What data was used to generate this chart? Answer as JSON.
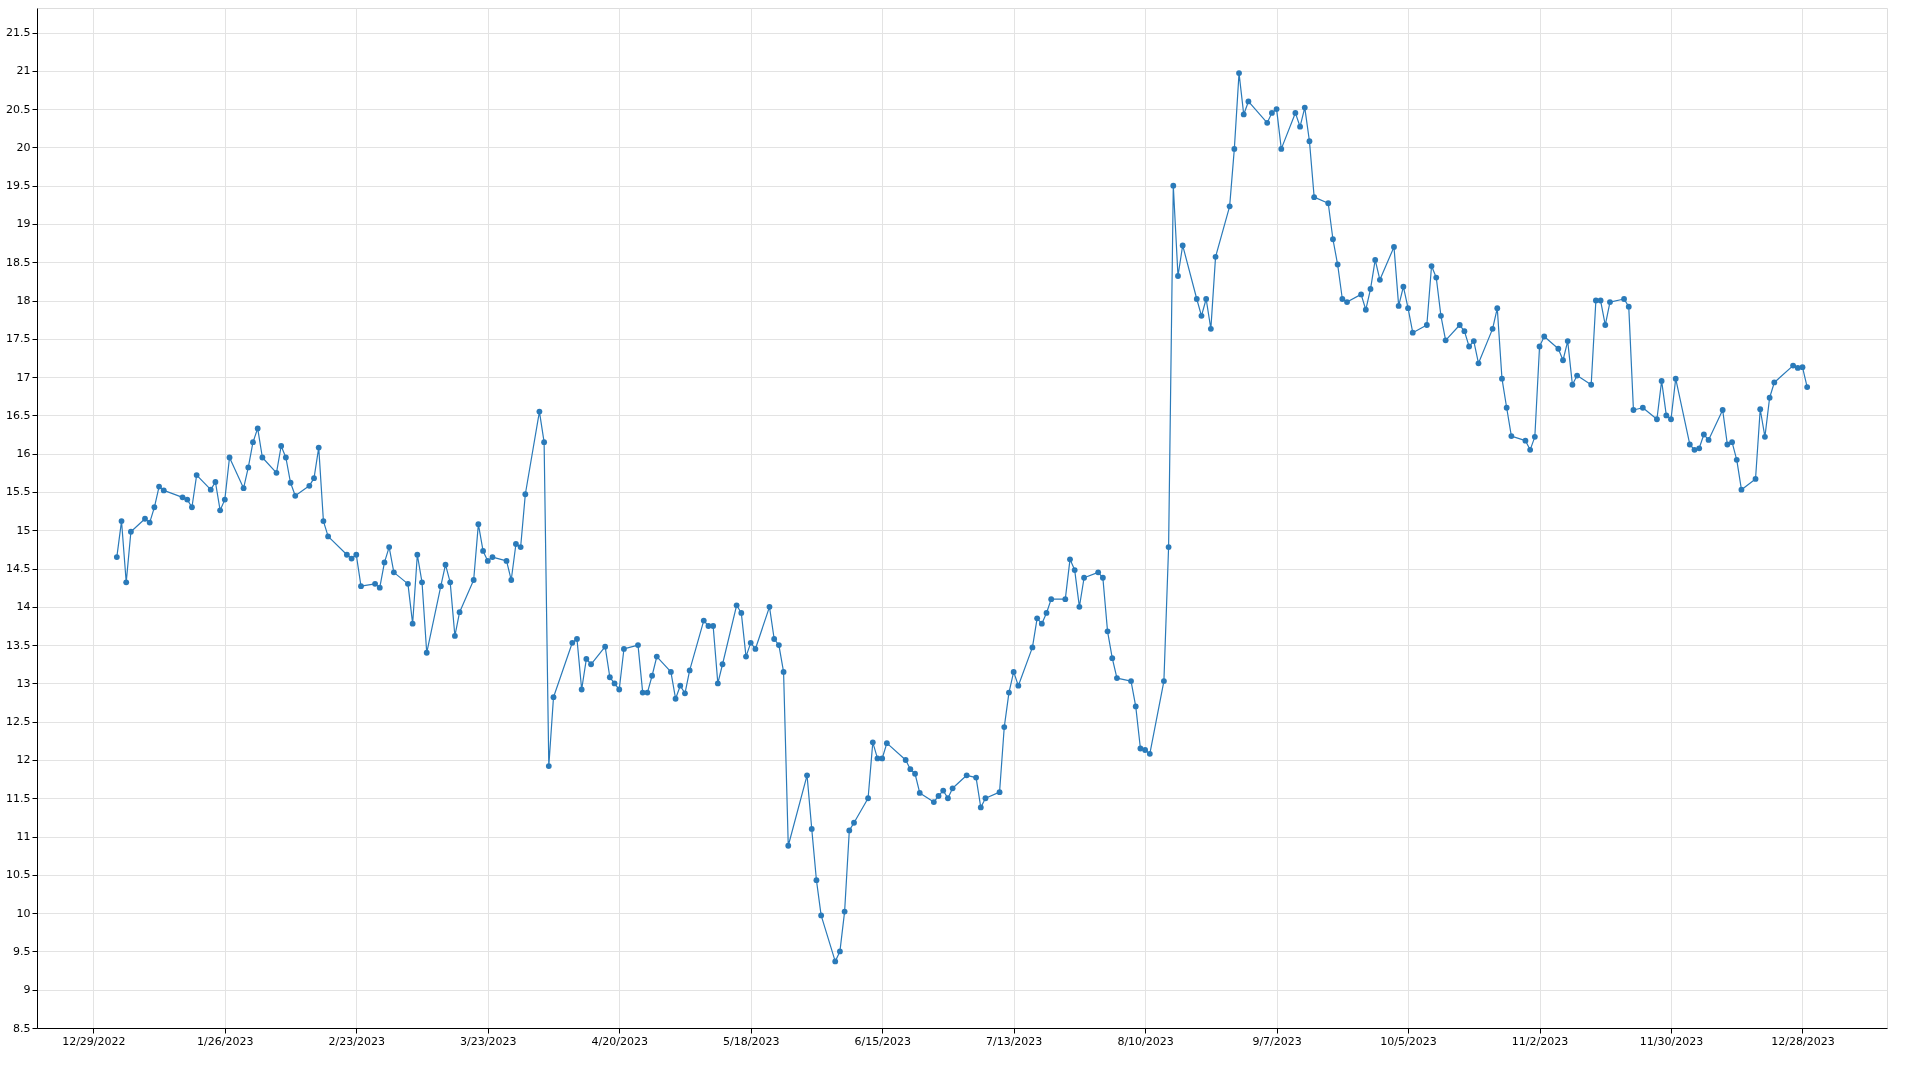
{
  "chart_data": {
    "type": "line",
    "x": [
      "2023-01-03",
      "2023-01-04",
      "2023-01-05",
      "2023-01-06",
      "2023-01-09",
      "2023-01-10",
      "2023-01-11",
      "2023-01-12",
      "2023-01-13",
      "2023-01-17",
      "2023-01-18",
      "2023-01-19",
      "2023-01-20",
      "2023-01-23",
      "2023-01-24",
      "2023-01-25",
      "2023-01-26",
      "2023-01-27",
      "2023-01-30",
      "2023-01-31",
      "2023-02-01",
      "2023-02-02",
      "2023-02-03",
      "2023-02-06",
      "2023-02-07",
      "2023-02-08",
      "2023-02-09",
      "2023-02-10",
      "2023-02-13",
      "2023-02-14",
      "2023-02-15",
      "2023-02-16",
      "2023-02-17",
      "2023-02-21",
      "2023-02-22",
      "2023-02-23",
      "2023-02-24",
      "2023-02-27",
      "2023-02-28",
      "2023-03-01",
      "2023-03-02",
      "2023-03-03",
      "2023-03-06",
      "2023-03-07",
      "2023-03-08",
      "2023-03-09",
      "2023-03-10",
      "2023-03-13",
      "2023-03-14",
      "2023-03-15",
      "2023-03-16",
      "2023-03-17",
      "2023-03-20",
      "2023-03-21",
      "2023-03-22",
      "2023-03-23",
      "2023-03-24",
      "2023-03-27",
      "2023-03-28",
      "2023-03-29",
      "2023-03-30",
      "2023-03-31",
      "2023-04-03",
      "2023-04-04",
      "2023-04-05",
      "2023-04-06",
      "2023-04-10",
      "2023-04-11",
      "2023-04-12",
      "2023-04-13",
      "2023-04-14",
      "2023-04-17",
      "2023-04-18",
      "2023-04-19",
      "2023-04-20",
      "2023-04-21",
      "2023-04-24",
      "2023-04-25",
      "2023-04-26",
      "2023-04-27",
      "2023-04-28",
      "2023-05-01",
      "2023-05-02",
      "2023-05-03",
      "2023-05-04",
      "2023-05-05",
      "2023-05-08",
      "2023-05-09",
      "2023-05-10",
      "2023-05-11",
      "2023-05-12",
      "2023-05-15",
      "2023-05-16",
      "2023-05-17",
      "2023-05-18",
      "2023-05-19",
      "2023-05-22",
      "2023-05-23",
      "2023-05-24",
      "2023-05-25",
      "2023-05-26",
      "2023-05-30",
      "2023-05-31",
      "2023-06-01",
      "2023-06-02",
      "2023-06-05",
      "2023-06-06",
      "2023-06-07",
      "2023-06-08",
      "2023-06-09",
      "2023-06-12",
      "2023-06-13",
      "2023-06-14",
      "2023-06-15",
      "2023-06-16",
      "2023-06-20",
      "2023-06-21",
      "2023-06-22",
      "2023-06-23",
      "2023-06-26",
      "2023-06-27",
      "2023-06-28",
      "2023-06-29",
      "2023-06-30",
      "2023-07-03",
      "2023-07-05",
      "2023-07-06",
      "2023-07-07",
      "2023-07-10",
      "2023-07-11",
      "2023-07-12",
      "2023-07-13",
      "2023-07-14",
      "2023-07-17",
      "2023-07-18",
      "2023-07-19",
      "2023-07-20",
      "2023-07-21",
      "2023-07-24",
      "2023-07-25",
      "2023-07-26",
      "2023-07-27",
      "2023-07-28",
      "2023-07-31",
      "2023-08-01",
      "2023-08-02",
      "2023-08-03",
      "2023-08-04",
      "2023-08-07",
      "2023-08-08",
      "2023-08-09",
      "2023-08-10",
      "2023-08-11",
      "2023-08-14",
      "2023-08-15",
      "2023-08-16",
      "2023-08-17",
      "2023-08-18",
      "2023-08-21",
      "2023-08-22",
      "2023-08-23",
      "2023-08-24",
      "2023-08-25",
      "2023-08-28",
      "2023-08-29",
      "2023-08-30",
      "2023-08-31",
      "2023-09-01",
      "2023-09-05",
      "2023-09-06",
      "2023-09-07",
      "2023-09-08",
      "2023-09-11",
      "2023-09-12",
      "2023-09-13",
      "2023-09-14",
      "2023-09-15",
      "2023-09-18",
      "2023-09-19",
      "2023-09-20",
      "2023-09-21",
      "2023-09-22",
      "2023-09-25",
      "2023-09-26",
      "2023-09-27",
      "2023-09-28",
      "2023-09-29",
      "2023-10-02",
      "2023-10-03",
      "2023-10-04",
      "2023-10-05",
      "2023-10-06",
      "2023-10-09",
      "2023-10-10",
      "2023-10-11",
      "2023-10-12",
      "2023-10-13",
      "2023-10-16",
      "2023-10-17",
      "2023-10-18",
      "2023-10-19",
      "2023-10-20",
      "2023-10-23",
      "2023-10-24",
      "2023-10-25",
      "2023-10-26",
      "2023-10-27",
      "2023-10-30",
      "2023-10-31",
      "2023-11-01",
      "2023-11-02",
      "2023-11-03",
      "2023-11-06",
      "2023-11-07",
      "2023-11-08",
      "2023-11-09",
      "2023-11-10",
      "2023-11-13",
      "2023-11-14",
      "2023-11-15",
      "2023-11-16",
      "2023-11-17",
      "2023-11-20",
      "2023-11-21",
      "2023-11-22",
      "2023-11-24",
      "2023-11-27",
      "2023-11-28",
      "2023-11-29",
      "2023-11-30",
      "2023-12-01",
      "2023-12-04",
      "2023-12-05",
      "2023-12-06",
      "2023-12-07",
      "2023-12-08",
      "2023-12-11",
      "2023-12-12",
      "2023-12-13",
      "2023-12-14",
      "2023-12-15",
      "2023-12-18",
      "2023-12-19",
      "2023-12-20",
      "2023-12-21",
      "2023-12-22",
      "2023-12-26",
      "2023-12-27",
      "2023-12-28",
      "2023-12-29"
    ],
    "series": [
      {
        "color": "#2a7ab9",
        "values": [
          14.65,
          15.12,
          14.32,
          14.98,
          15.15,
          15.1,
          15.3,
          15.57,
          15.52,
          15.43,
          15.4,
          15.3,
          15.72,
          15.53,
          15.63,
          15.26,
          15.4,
          15.95,
          15.55,
          15.82,
          16.15,
          16.33,
          15.95,
          15.75,
          16.1,
          15.95,
          15.62,
          15.45,
          15.58,
          15.68,
          16.08,
          15.12,
          14.92,
          14.68,
          14.63,
          14.68,
          14.27,
          14.3,
          14.25,
          14.58,
          14.78,
          14.45,
          14.3,
          13.78,
          14.68,
          14.32,
          13.4,
          14.27,
          14.55,
          14.32,
          13.62,
          13.93,
          14.35,
          15.08,
          14.73,
          14.6,
          14.65,
          14.6,
          14.35,
          14.82,
          14.78,
          15.47,
          16.55,
          16.15,
          11.92,
          12.82,
          13.53,
          13.58,
          12.92,
          13.32,
          13.25,
          13.48,
          13.08,
          13.0,
          12.92,
          13.45,
          13.5,
          12.88,
          12.88,
          13.1,
          13.35,
          13.15,
          12.8,
          12.97,
          12.87,
          13.17,
          13.82,
          13.75,
          13.75,
          13.0,
          13.25,
          14.02,
          13.92,
          13.35,
          13.53,
          13.45,
          14.0,
          13.58,
          13.5,
          13.15,
          10.88,
          11.8,
          11.1,
          10.43,
          9.97,
          9.37,
          9.5,
          10.02,
          11.08,
          11.18,
          11.5,
          12.23,
          12.02,
          12.02,
          12.22,
          12.0,
          11.88,
          11.82,
          11.57,
          11.45,
          11.53,
          11.6,
          11.5,
          11.63,
          11.8,
          11.77,
          11.38,
          11.5,
          11.58,
          12.43,
          12.88,
          13.15,
          12.97,
          13.47,
          13.85,
          13.78,
          13.92,
          14.1,
          14.1,
          14.62,
          14.48,
          14.0,
          14.38,
          14.45,
          14.38,
          13.68,
          13.33,
          13.07,
          13.03,
          12.7,
          12.15,
          12.13,
          12.08,
          13.03,
          14.78,
          19.5,
          18.32,
          18.72,
          18.02,
          17.8,
          18.02,
          17.63,
          18.57,
          19.23,
          19.98,
          20.97,
          20.43,
          20.6,
          20.32,
          20.45,
          20.5,
          19.98,
          20.45,
          20.27,
          20.52,
          20.08,
          19.35,
          19.27,
          18.8,
          18.47,
          18.02,
          17.98,
          18.08,
          17.88,
          18.15,
          18.53,
          18.27,
          18.7,
          17.93,
          18.18,
          17.9,
          17.58,
          17.68,
          18.45,
          18.3,
          17.8,
          17.48,
          17.68,
          17.6,
          17.4,
          17.47,
          17.18,
          17.63,
          17.9,
          16.98,
          16.6,
          16.23,
          16.17,
          16.05,
          16.22,
          17.4,
          17.53,
          17.37,
          17.22,
          17.47,
          16.9,
          17.02,
          16.9,
          18.0,
          18.0,
          17.68,
          17.98,
          18.02,
          17.92,
          16.57,
          16.6,
          16.45,
          16.95,
          16.5,
          16.45,
          16.98,
          16.12,
          16.05,
          16.07,
          16.25,
          16.18,
          16.57,
          16.12,
          16.15,
          15.92,
          15.53,
          15.67,
          16.58,
          16.22,
          16.73,
          16.93,
          17.15,
          17.12,
          17.13,
          16.87
        ]
      }
    ],
    "xlim": [
      "2022-12-17",
      "2024-01-15"
    ],
    "xticks": [
      {
        "value": "2022-12-29",
        "label": "12/29/2022"
      },
      {
        "value": "2023-01-26",
        "label": "1/26/2023"
      },
      {
        "value": "2023-02-23",
        "label": "2/23/2023"
      },
      {
        "value": "2023-03-23",
        "label": "3/23/2023"
      },
      {
        "value": "2023-04-20",
        "label": "4/20/2023"
      },
      {
        "value": "2023-05-18",
        "label": "5/18/2023"
      },
      {
        "value": "2023-06-15",
        "label": "6/15/2023"
      },
      {
        "value": "2023-07-13",
        "label": "7/13/2023"
      },
      {
        "value": "2023-08-10",
        "label": "8/10/2023"
      },
      {
        "value": "2023-09-07",
        "label": "9/7/2023"
      },
      {
        "value": "2023-10-05",
        "label": "10/5/2023"
      },
      {
        "value": "2023-11-02",
        "label": "11/2/2023"
      },
      {
        "value": "2023-11-30",
        "label": "11/30/2023"
      },
      {
        "value": "2023-12-28",
        "label": "12/28/2023"
      }
    ],
    "ylim": [
      8.5,
      21.82
    ],
    "yticks": [
      8.5,
      9,
      9.5,
      10,
      10.5,
      11,
      11.5,
      12,
      12.5,
      13,
      13.5,
      14,
      14.5,
      15,
      15.5,
      16,
      16.5,
      17,
      17.5,
      18,
      18.5,
      19,
      19.5,
      20,
      20.5,
      21,
      21.5
    ],
    "grid": true,
    "marker": "circle",
    "line_style": "solid"
  }
}
